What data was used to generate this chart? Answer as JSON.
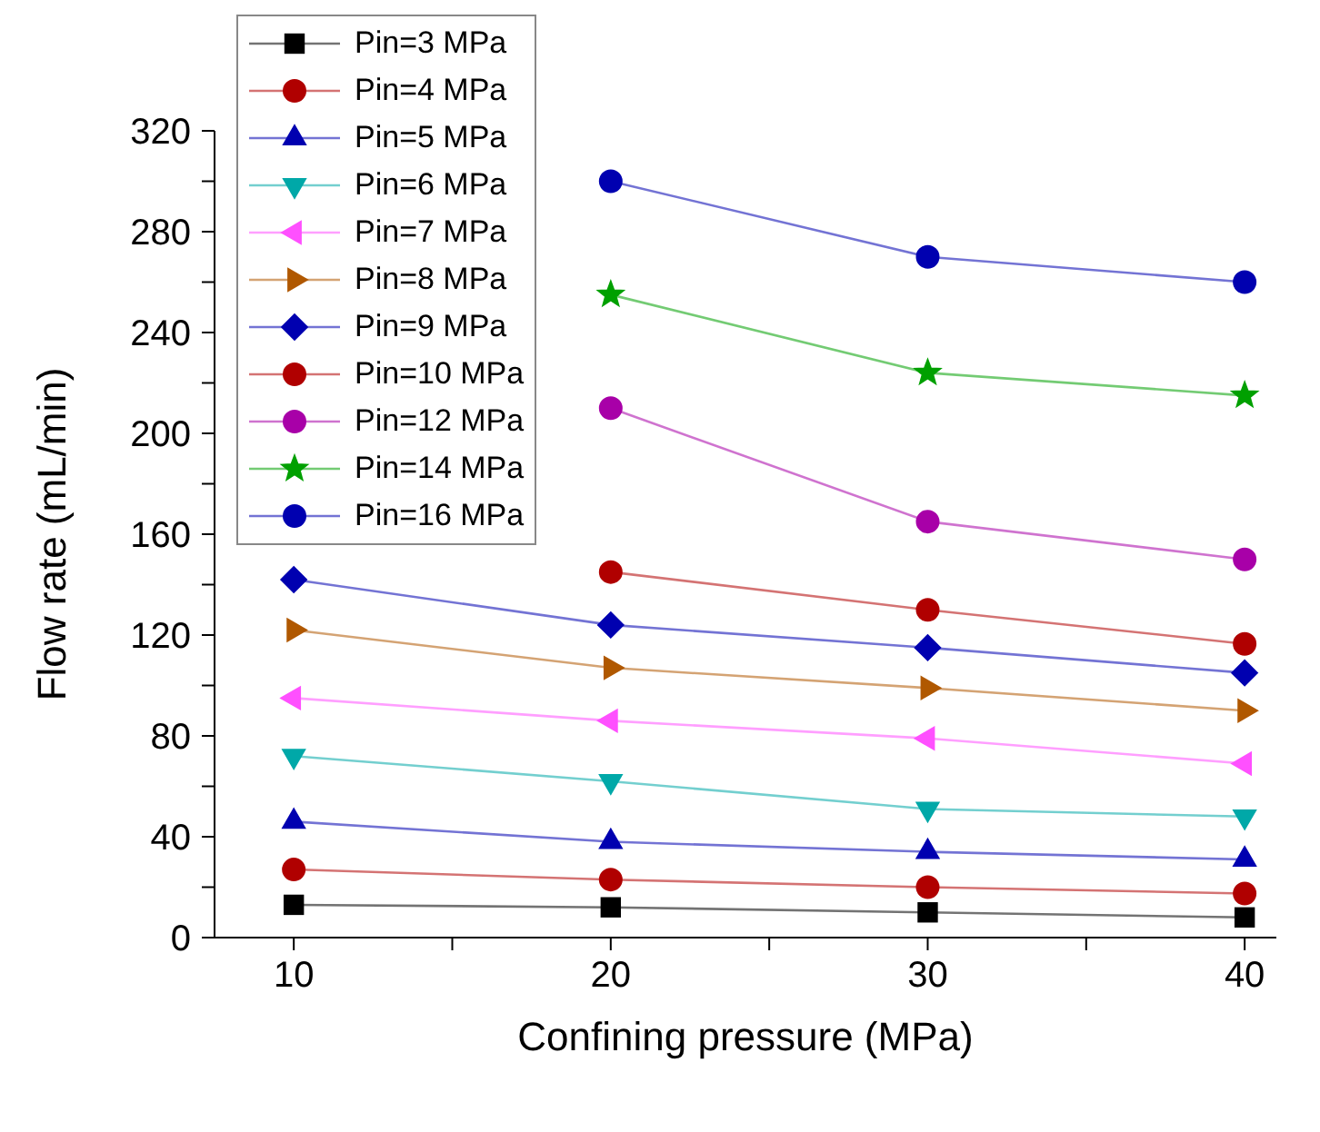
{
  "chart_data": {
    "type": "line",
    "xlabel": "Confining pressure (MPa)",
    "ylabel": "Flow rate (mL/min)",
    "x": [
      10,
      20,
      30,
      40
    ],
    "xlim": [
      7.5,
      41
    ],
    "xticks": [
      10,
      {
        "value": 15,
        "label": null
      },
      20,
      {
        "value": 25,
        "label": null
      },
      30,
      {
        "value": 35,
        "label": null
      },
      40
    ],
    "ylim": [
      0,
      320
    ],
    "yticks": [
      0,
      {
        "value": 20,
        "label": null
      },
      40,
      {
        "value": 60,
        "label": null
      },
      80,
      {
        "value": 100,
        "label": null
      },
      120,
      {
        "value": 140,
        "label": null
      },
      160,
      {
        "value": 180,
        "label": null
      },
      200,
      {
        "value": 220,
        "label": null
      },
      240,
      {
        "value": 260,
        "label": null
      },
      280,
      {
        "value": 300,
        "label": null
      },
      320
    ],
    "legend": "top left",
    "line_style": "solid",
    "series": [
      {
        "name": "Pin=3 MPa",
        "color": "#000000",
        "marker": "square",
        "values": [
          13,
          12,
          10,
          8
        ]
      },
      {
        "name": "Pin=4 MPa",
        "color": "#b00000",
        "marker": "circle",
        "values": [
          27,
          23,
          20,
          17.5
        ]
      },
      {
        "name": "Pin=5 MPa",
        "color": "#0000b0",
        "marker": "triangle",
        "values": [
          46,
          38,
          34,
          31
        ]
      },
      {
        "name": "Pin=6 MPa",
        "color": "#00a8a8",
        "marker": "triangle-down",
        "values": [
          72,
          62,
          51,
          48
        ]
      },
      {
        "name": "Pin=7 MPa",
        "color": "#ff50ff",
        "marker": "triangle-left",
        "values": [
          95,
          86,
          79,
          69
        ]
      },
      {
        "name": "Pin=8 MPa",
        "color": "#b05800",
        "marker": "triangle-right",
        "values": [
          122,
          107,
          99,
          90
        ]
      },
      {
        "name": "Pin=9 MPa",
        "color": "#0000b0",
        "marker": "diamond",
        "values": [
          142,
          124,
          115,
          105
        ]
      },
      {
        "name": "Pin=10 MPa",
        "color": "#b00000",
        "marker": "circle",
        "x": [
          20,
          30,
          40
        ],
        "values": [
          145,
          130,
          116.5
        ]
      },
      {
        "name": "Pin=12 MPa",
        "color": "#a800a8",
        "marker": "circle",
        "x": [
          20,
          30,
          40
        ],
        "values": [
          210,
          165,
          150
        ]
      },
      {
        "name": "Pin=14 MPa",
        "color": "#00a000",
        "marker": "star",
        "x": [
          20,
          30,
          40
        ],
        "values": [
          255,
          224,
          215
        ]
      },
      {
        "name": "Pin=16 MPa",
        "color": "#0000b0",
        "marker": "circle",
        "x": [
          20,
          30,
          40
        ],
        "values": [
          300,
          270,
          260
        ]
      }
    ]
  }
}
